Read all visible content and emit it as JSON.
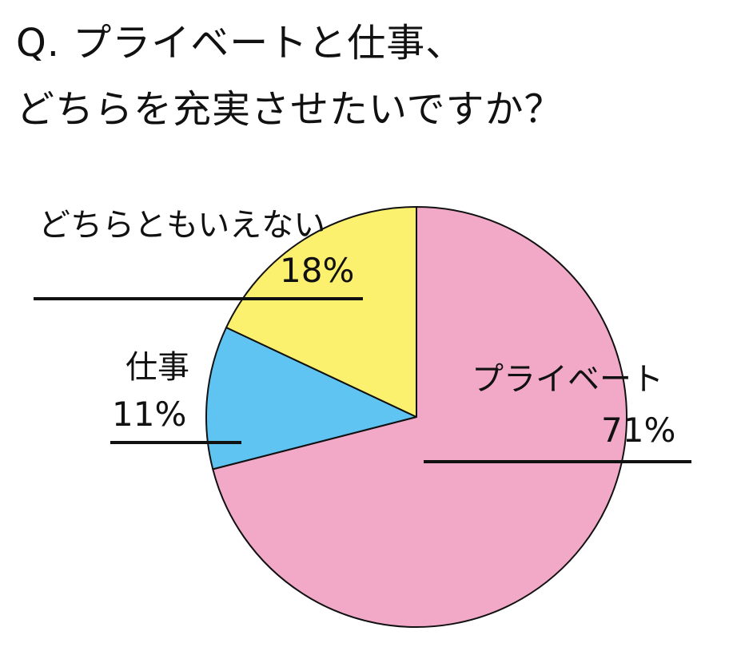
{
  "question": {
    "line1": "Q. プライベートと仕事、",
    "line2": "どちらを充実させたいですか？"
  },
  "chart_data": {
    "type": "pie",
    "title": "Q. プライベートと仕事、どちらを充実させたいですか？",
    "slices": [
      {
        "label": "プライベート",
        "value": 71,
        "value_label": "71%",
        "color": "#F2A9C8"
      },
      {
        "label": "仕事",
        "value": 11,
        "value_label": "11%",
        "color": "#5FC4F2"
      },
      {
        "label": "どちらともいえない",
        "value": 18,
        "value_label": "18%",
        "color": "#FCF16E"
      }
    ],
    "start": "12 o'clock",
    "direction": "clockwise",
    "legend": "none"
  }
}
